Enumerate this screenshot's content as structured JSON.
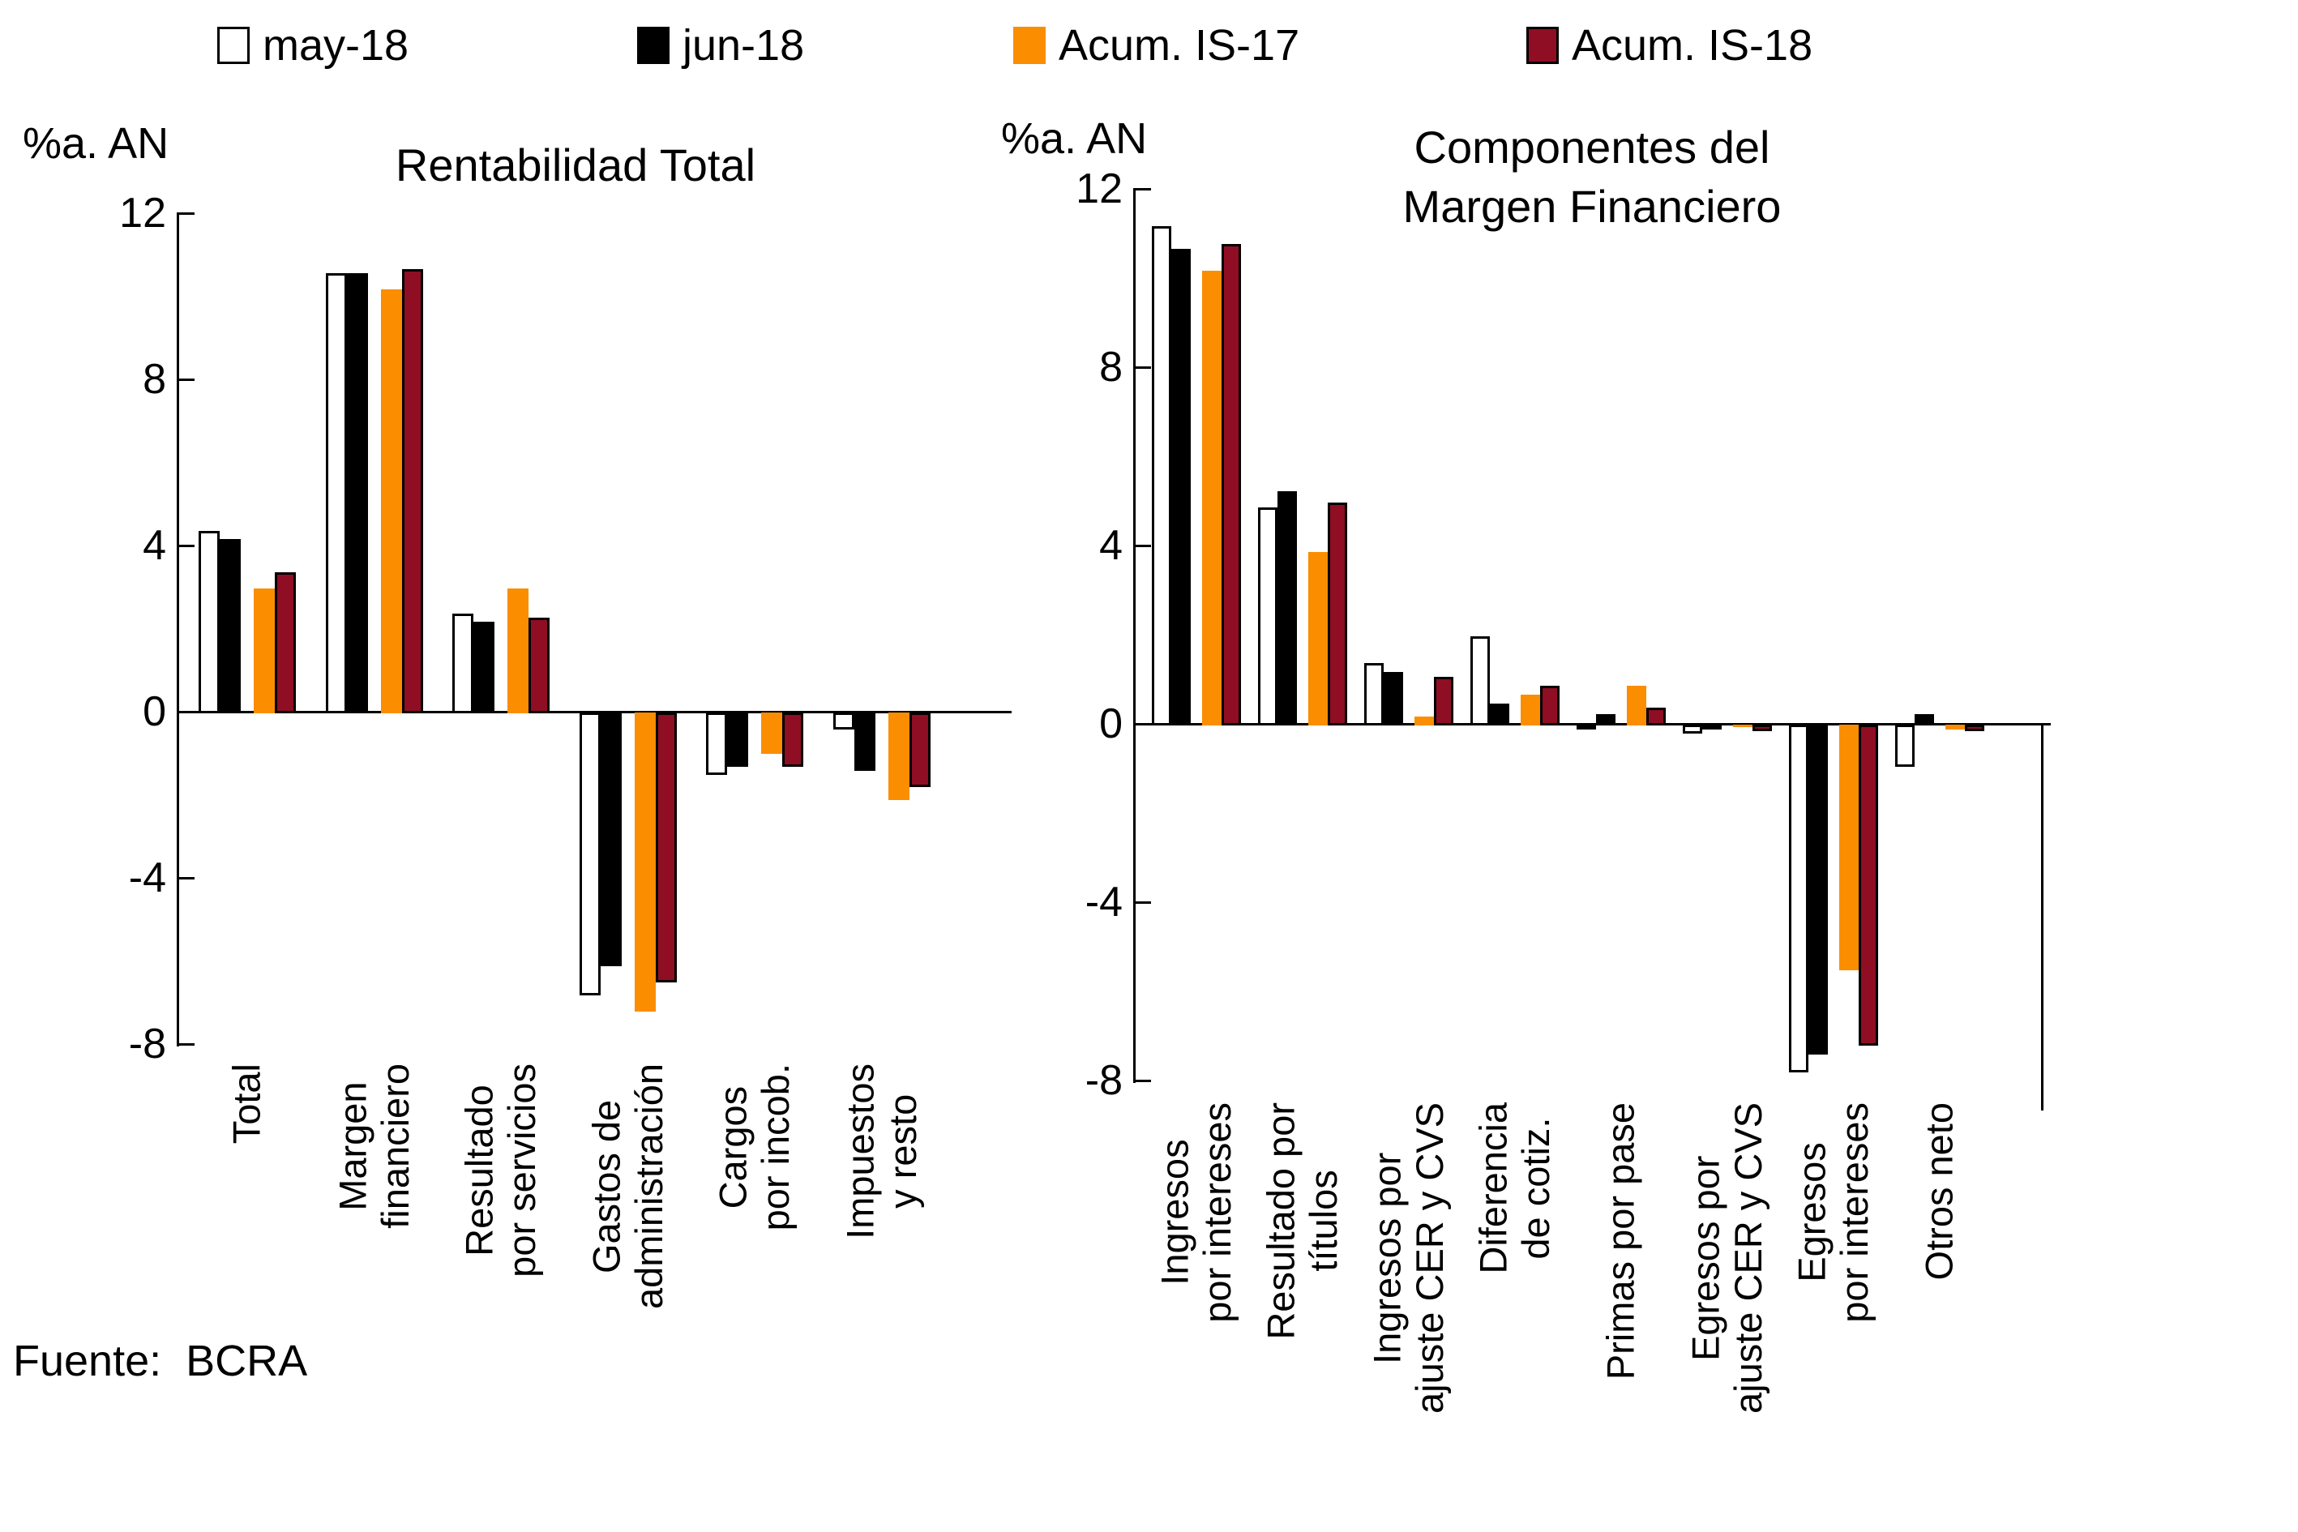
{
  "legend": {
    "items": [
      {
        "label": "may-18",
        "color": "#FFFFFF",
        "border": "#000000"
      },
      {
        "label": "jun-18",
        "color": "#000000",
        "border": "#000000"
      },
      {
        "label": "Acum. IS-17",
        "color": "#FB8D00",
        "border": null
      },
      {
        "label": "Acum. IS-18",
        "color": "#8F0E23",
        "border": "#000000"
      }
    ]
  },
  "footer": {
    "source": "Fuente:  BCRA"
  },
  "chart_data": [
    {
      "type": "bar",
      "title": "Rentabilidad Total",
      "ylabel": "%a. AN",
      "ylim": [
        -8,
        12
      ],
      "yticks": [
        12,
        8,
        4,
        0,
        -4,
        -8
      ],
      "grid": false,
      "legend_position": "top",
      "categories": [
        "Total",
        "Margen\nfinanciero",
        "Resultado\npor servicios",
        "Gastos de\nadministración",
        "Cargos\npor incob.",
        "Impuestos\ny resto"
      ],
      "series": [
        {
          "name": "may-18",
          "values": [
            4.4,
            10.6,
            2.4,
            -6.8,
            -1.5,
            -0.4
          ]
        },
        {
          "name": "jun-18",
          "values": [
            4.2,
            10.6,
            2.2,
            -6.1,
            -1.3,
            -1.4
          ]
        },
        {
          "name": "Acum. IS-17",
          "values": [
            3.0,
            10.2,
            3.0,
            -7.2,
            -1.0,
            -2.1
          ]
        },
        {
          "name": "Acum. IS-18",
          "values": [
            3.4,
            10.7,
            2.3,
            -6.5,
            -1.3,
            -1.8
          ]
        }
      ]
    },
    {
      "type": "bar",
      "title": "Componentes del\nMargen Financiero",
      "ylabel": "%a. AN",
      "ylim": [
        -8,
        12
      ],
      "yticks": [
        12,
        8,
        4,
        0,
        -4,
        -8
      ],
      "grid": false,
      "legend_position": "top",
      "categories": [
        "Ingresos\npor intereses",
        "Resultado por\ntítulos",
        "Ingresos por\najuste CER y CVS",
        "Diferencia\nde cotiz.",
        "Primas por pase",
        "Egresos por\najuste CER y CVS",
        "Egresos\npor intereses",
        "Otros neto"
      ],
      "series": [
        {
          "name": "may-18",
          "values": [
            11.2,
            4.9,
            1.4,
            2.0,
            -0.05,
            -0.2,
            -7.8,
            -0.95
          ]
        },
        {
          "name": "jun-18",
          "values": [
            10.7,
            5.25,
            1.2,
            0.5,
            0.25,
            -0.1,
            -7.4,
            0.25
          ]
        },
        {
          "name": "Acum. IS-17",
          "values": [
            10.2,
            3.9,
            0.2,
            0.7,
            0.9,
            -0.05,
            -5.5,
            -0.1
          ]
        },
        {
          "name": "Acum. IS-18",
          "values": [
            10.8,
            5.0,
            1.1,
            0.9,
            0.4,
            -0.15,
            -7.2,
            -0.15
          ]
        }
      ]
    }
  ]
}
